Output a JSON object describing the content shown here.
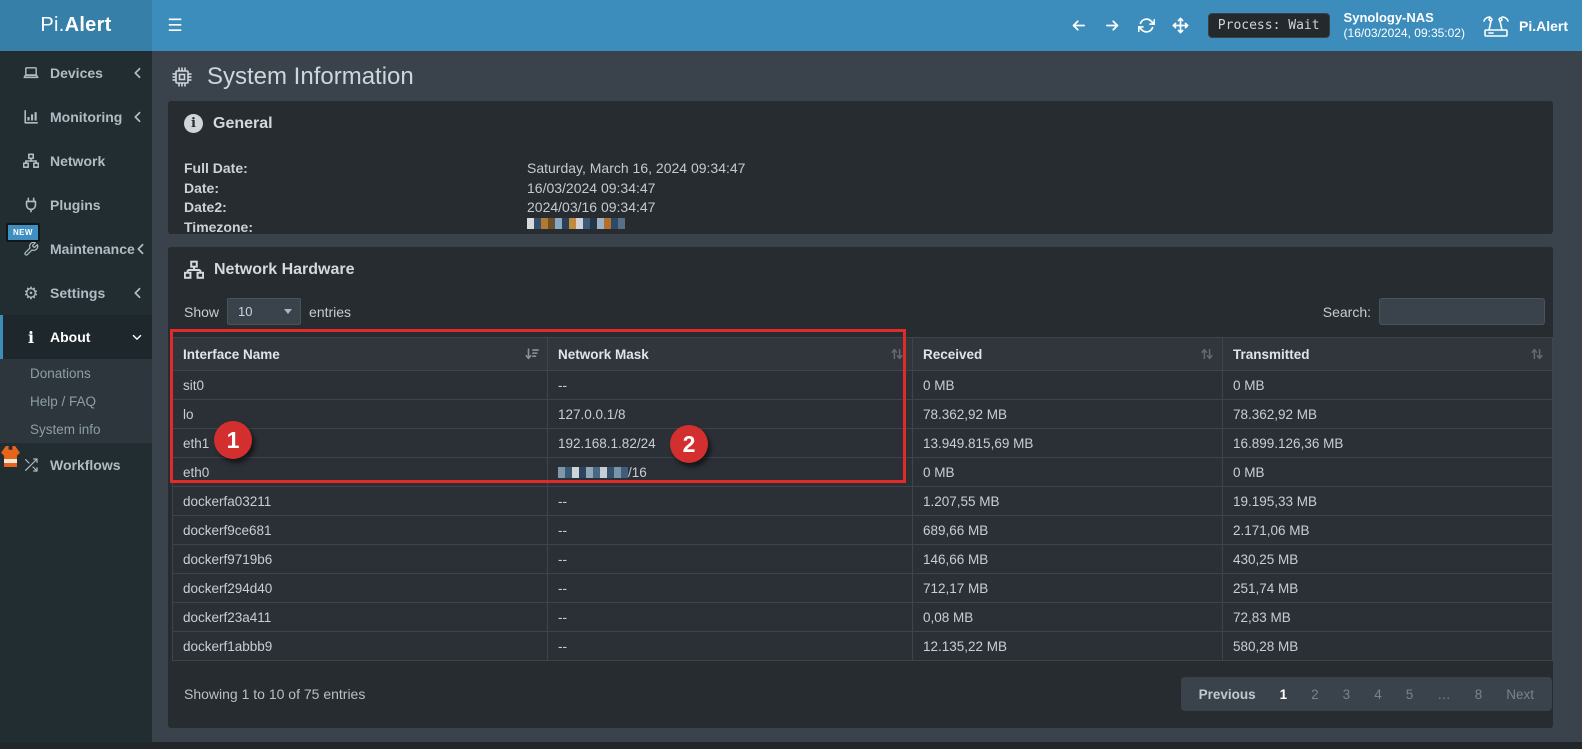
{
  "colors": {
    "navbar": "#3c8dbc",
    "navbar_logo": "#367fa9",
    "sidebar": "#222d32",
    "content_bg": "#3a434c",
    "panel_bg": "#272c31",
    "annotation_red": "#e12b2b"
  },
  "icons": {
    "hamburger": "☰",
    "gear": "⚙",
    "arrow_left": "←",
    "arrow_right": "→"
  },
  "topbar": {
    "logo_prefix": "Pi.",
    "logo_bold": "Alert",
    "process_badge": "Process: Wait",
    "host_name": "Synology-NAS",
    "host_time": "(16/03/2024, 09:35:02)",
    "app_name": "Pi.Alert"
  },
  "sidebar": {
    "items": [
      {
        "label": "Devices"
      },
      {
        "label": "Monitoring"
      },
      {
        "label": "Network"
      },
      {
        "label": "Plugins"
      },
      {
        "label": "Maintenance",
        "badge": "NEW"
      },
      {
        "label": "Settings"
      },
      {
        "label": "About"
      },
      {
        "label": "Workflows"
      }
    ],
    "about_submenu": [
      {
        "label": "Donations"
      },
      {
        "label": "Help / FAQ"
      },
      {
        "label": "System info"
      }
    ]
  },
  "main": {
    "title": "System Information",
    "general": {
      "title": "General",
      "fields": [
        {
          "label": "Full Date:",
          "value": "Saturday, March 16, 2024 09:34:47"
        },
        {
          "label": "Date:",
          "value": "16/03/2024 09:34:47"
        },
        {
          "label": "Date2:",
          "value": "2024/03/16 09:34:47"
        },
        {
          "label": "Timezone:",
          "value": ""
        }
      ]
    },
    "network_hardware": {
      "title": "Network Hardware",
      "show_label": "Show",
      "page_size": "10",
      "entries_label": "entries",
      "search_label": "Search:",
      "search_value": "",
      "table": {
        "columns": [
          "Interface Name",
          "Network Mask",
          "Received",
          "Transmitted"
        ],
        "rows": [
          {
            "interface": "sit0",
            "mask": "--",
            "received": "0 MB",
            "transmitted": "0 MB"
          },
          {
            "interface": "lo",
            "mask": "127.0.0.1/8",
            "received": "78.362,92 MB",
            "transmitted": "78.362,92 MB"
          },
          {
            "interface": "eth1",
            "mask": "192.168.1.82/24",
            "received": "13.949.815,69 MB",
            "transmitted": "16.899.126,36 MB"
          },
          {
            "interface": "eth0",
            "mask": "/16",
            "received": "0 MB",
            "transmitted": "0 MB"
          },
          {
            "interface": "dockerfa03211",
            "mask": "--",
            "received": "1.207,55 MB",
            "transmitted": "19.195,33 MB"
          },
          {
            "interface": "dockerf9ce681",
            "mask": "--",
            "received": "689,66 MB",
            "transmitted": "2.171,06 MB"
          },
          {
            "interface": "dockerf9719b6",
            "mask": "--",
            "received": "146,66 MB",
            "transmitted": "430,25 MB"
          },
          {
            "interface": "dockerf294d40",
            "mask": "--",
            "received": "712,17 MB",
            "transmitted": "251,74 MB"
          },
          {
            "interface": "dockerf23a411",
            "mask": "--",
            "received": "0,08 MB",
            "transmitted": "72,83 MB"
          },
          {
            "interface": "dockerf1abbb9",
            "mask": "--",
            "received": "12.135,22 MB",
            "transmitted": "580,28 MB"
          }
        ]
      },
      "footer": {
        "showing": "Showing 1 to 10 of 75 entries",
        "pagination": [
          "Previous",
          "1",
          "2",
          "3",
          "4",
          "5",
          "…",
          "8",
          "Next"
        ]
      }
    },
    "annotations": {
      "badge1": "1",
      "badge2": "2"
    }
  },
  "mosaics": {
    "timezone": [
      "#d7d9db",
      "#33506c",
      "#b07a35",
      "#6e5026",
      "#85aac8",
      "#2b3f55",
      "#c18a3e",
      "#cfd3d6",
      "#3c5a77",
      "#24364a",
      "#9db1c2",
      "#b4702e",
      "#2e4a66",
      "#567089"
    ],
    "eth0_mask": [
      "#8097a9",
      "#3a5974",
      "#d0d4d8",
      "#2b4560",
      "#91a7b9",
      "#496883",
      "#c5ced5",
      "#34506b",
      "#7b93a6",
      "#405e79"
    ]
  }
}
